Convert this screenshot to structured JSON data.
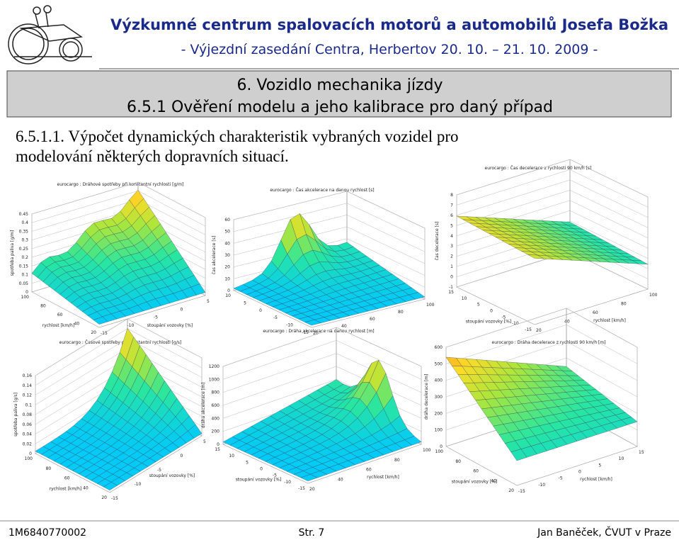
{
  "header": {
    "title": "Výzkumné centrum spalovacích motorů a automobilů Josefa Božka",
    "subtitle": "- Výjezdní zasedání Centra, Herbertov 20. 10. – 21. 10. 2009 -"
  },
  "banner": {
    "line1": "6. Vozidlo mechanika jízdy",
    "line2": "6.5.1 Ověření modelu a jeho kalibrace pro daný případ"
  },
  "section": {
    "heading_line1": "6.5.1.1. Výpočet dynamických charakteristik vybraných vozidel pro",
    "heading_line2": "modelování některých dopravních situací."
  },
  "plots": [
    {
      "title": "eurocargo : Dráhové spotřeby při konstantní rychlosti [g/m]",
      "z_label": "spotřeba paliva [g/m]",
      "z_ticks": [
        "0",
        "0.05",
        "0.1",
        "0.15",
        "0.2",
        "0.25",
        "0.3",
        "0.35",
        "0.4",
        "0.45"
      ],
      "u_label": "rychlost [km/h]",
      "u_ticks": [
        "20",
        "40",
        "60",
        "80",
        "100"
      ],
      "v_label": "stoupání vozovky [%]",
      "v_ticks": [
        "-15",
        "-10",
        "-5",
        "0",
        "5"
      ]
    },
    {
      "title": "eurocargo : Čas akcelerace na danou rychlost [s]",
      "z_label": "čas akcelerace [s]",
      "z_ticks": [
        "0",
        "10",
        "20",
        "30",
        "40",
        "50",
        "60"
      ],
      "u_ticks": [
        "-15",
        "-10",
        "-5",
        "0",
        "5",
        "10"
      ],
      "v_ticks": [
        "20",
        "40",
        "60",
        "80",
        "100"
      ]
    },
    {
      "title": "eurocargo : Čas decelerace z rychlosti 90 km/h [s]",
      "z_label": "čas decelerace [s]",
      "z_ticks": [
        "-1",
        "0",
        "1",
        "2",
        "3",
        "4",
        "5",
        "6",
        "7",
        "8"
      ],
      "u_label": "stoupání vozovky [%]",
      "u_ticks": [
        "-15",
        "-10",
        "-5",
        "0",
        "5",
        "10",
        "15"
      ],
      "v_label": "rychlost [km/h]",
      "v_ticks": [
        "20",
        "40",
        "60",
        "80",
        "100"
      ]
    },
    {
      "title": "eurocargo : Časové spotřeby při konstantní rychlosti [g/s]",
      "z_label": "spotřeba paliva [g/s]",
      "z_ticks": [
        "0",
        "0.02",
        "0.04",
        "0.06",
        "0.08",
        "0.1",
        "0.12",
        "0.14",
        "0.16"
      ],
      "u_label": "rychlost [km/h]",
      "u_ticks": [
        "20",
        "40",
        "60",
        "80",
        "100"
      ],
      "v_label": "stoupání vozovky [%]",
      "v_ticks": [
        "-15",
        "-10",
        "-5",
        "0",
        "5"
      ]
    },
    {
      "title": "eurocargo : Dráha akcelerace na danou rychlost [m]",
      "z_label": "dráha akcelerace [m]",
      "z_ticks": [
        "0",
        "200",
        "400",
        "600",
        "800",
        "1000",
        "1200"
      ],
      "u_label": "stoupání vozovky [%]",
      "u_ticks": [
        "-15",
        "-10",
        "-5",
        "0",
        "5",
        "10",
        "15"
      ],
      "v_label": "rychlost [km/h]",
      "v_ticks": [
        "20",
        "40",
        "60",
        "80",
        "100"
      ]
    },
    {
      "title": "eurocargo : Dráha decelerace z rychlosti 90 km/h [m]",
      "z_label": "dráha decelerace [m]",
      "z_ticks": [
        "0",
        "100",
        "200",
        "300",
        "400",
        "500",
        "600"
      ],
      "u_label": "stoupání vozovky [%]",
      "u_ticks": [
        "20",
        "40",
        "60",
        "80",
        "100"
      ],
      "v_label": "rychlost [km/h]",
      "v_ticks": [
        "-15",
        "-10",
        "-5",
        "0",
        "5",
        "10",
        "15"
      ]
    }
  ],
  "footer": {
    "left": "1M6840770002",
    "center": "Str. 7",
    "right": "Jan Baněček, ČVUT v Praze"
  }
}
